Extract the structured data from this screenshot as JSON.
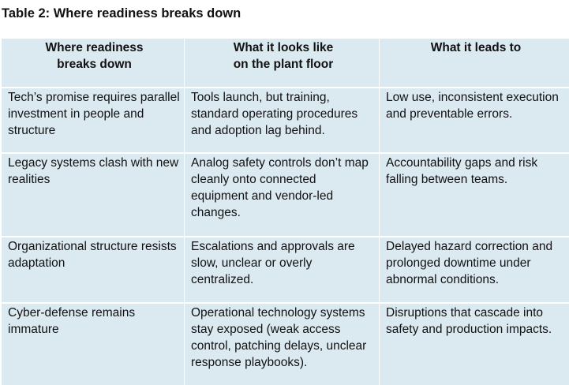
{
  "caption": "Table 2: Where readiness breaks down",
  "table": {
    "headers": [
      [
        "Where readiness",
        "breaks down"
      ],
      [
        "What it looks like",
        "on the plant floor"
      ],
      [
        "What it leads to"
      ]
    ],
    "rows": [
      [
        "Tech’s promise requires parallel investment in people and structure",
        "Tools launch, but training, standard operating procedures and adoption lag behind.",
        "Low use, inconsistent execution and preventable errors."
      ],
      [
        "Legacy systems clash with new realities",
        "Analog safety controls don’t map cleanly onto connected equipment and vendor-led changes.",
        "Accountability gaps and risk falling between teams."
      ],
      [
        "Organizational structure resists adaptation",
        "Escalations and approvals are slow, unclear or overly centralized.",
        "Delayed hazard correction and prolonged downtime under abnormal conditions."
      ],
      [
        "Cyber-defense remains immature",
        "Operational technology systems stay exposed (weak access control, patching delays, unclear response playbooks).",
        "Disruptions that cascade into safety and production impacts."
      ]
    ]
  },
  "colors": {
    "cell_background": "#dbe9f1",
    "grid_lines": "#ffffff",
    "text": "#111111"
  }
}
